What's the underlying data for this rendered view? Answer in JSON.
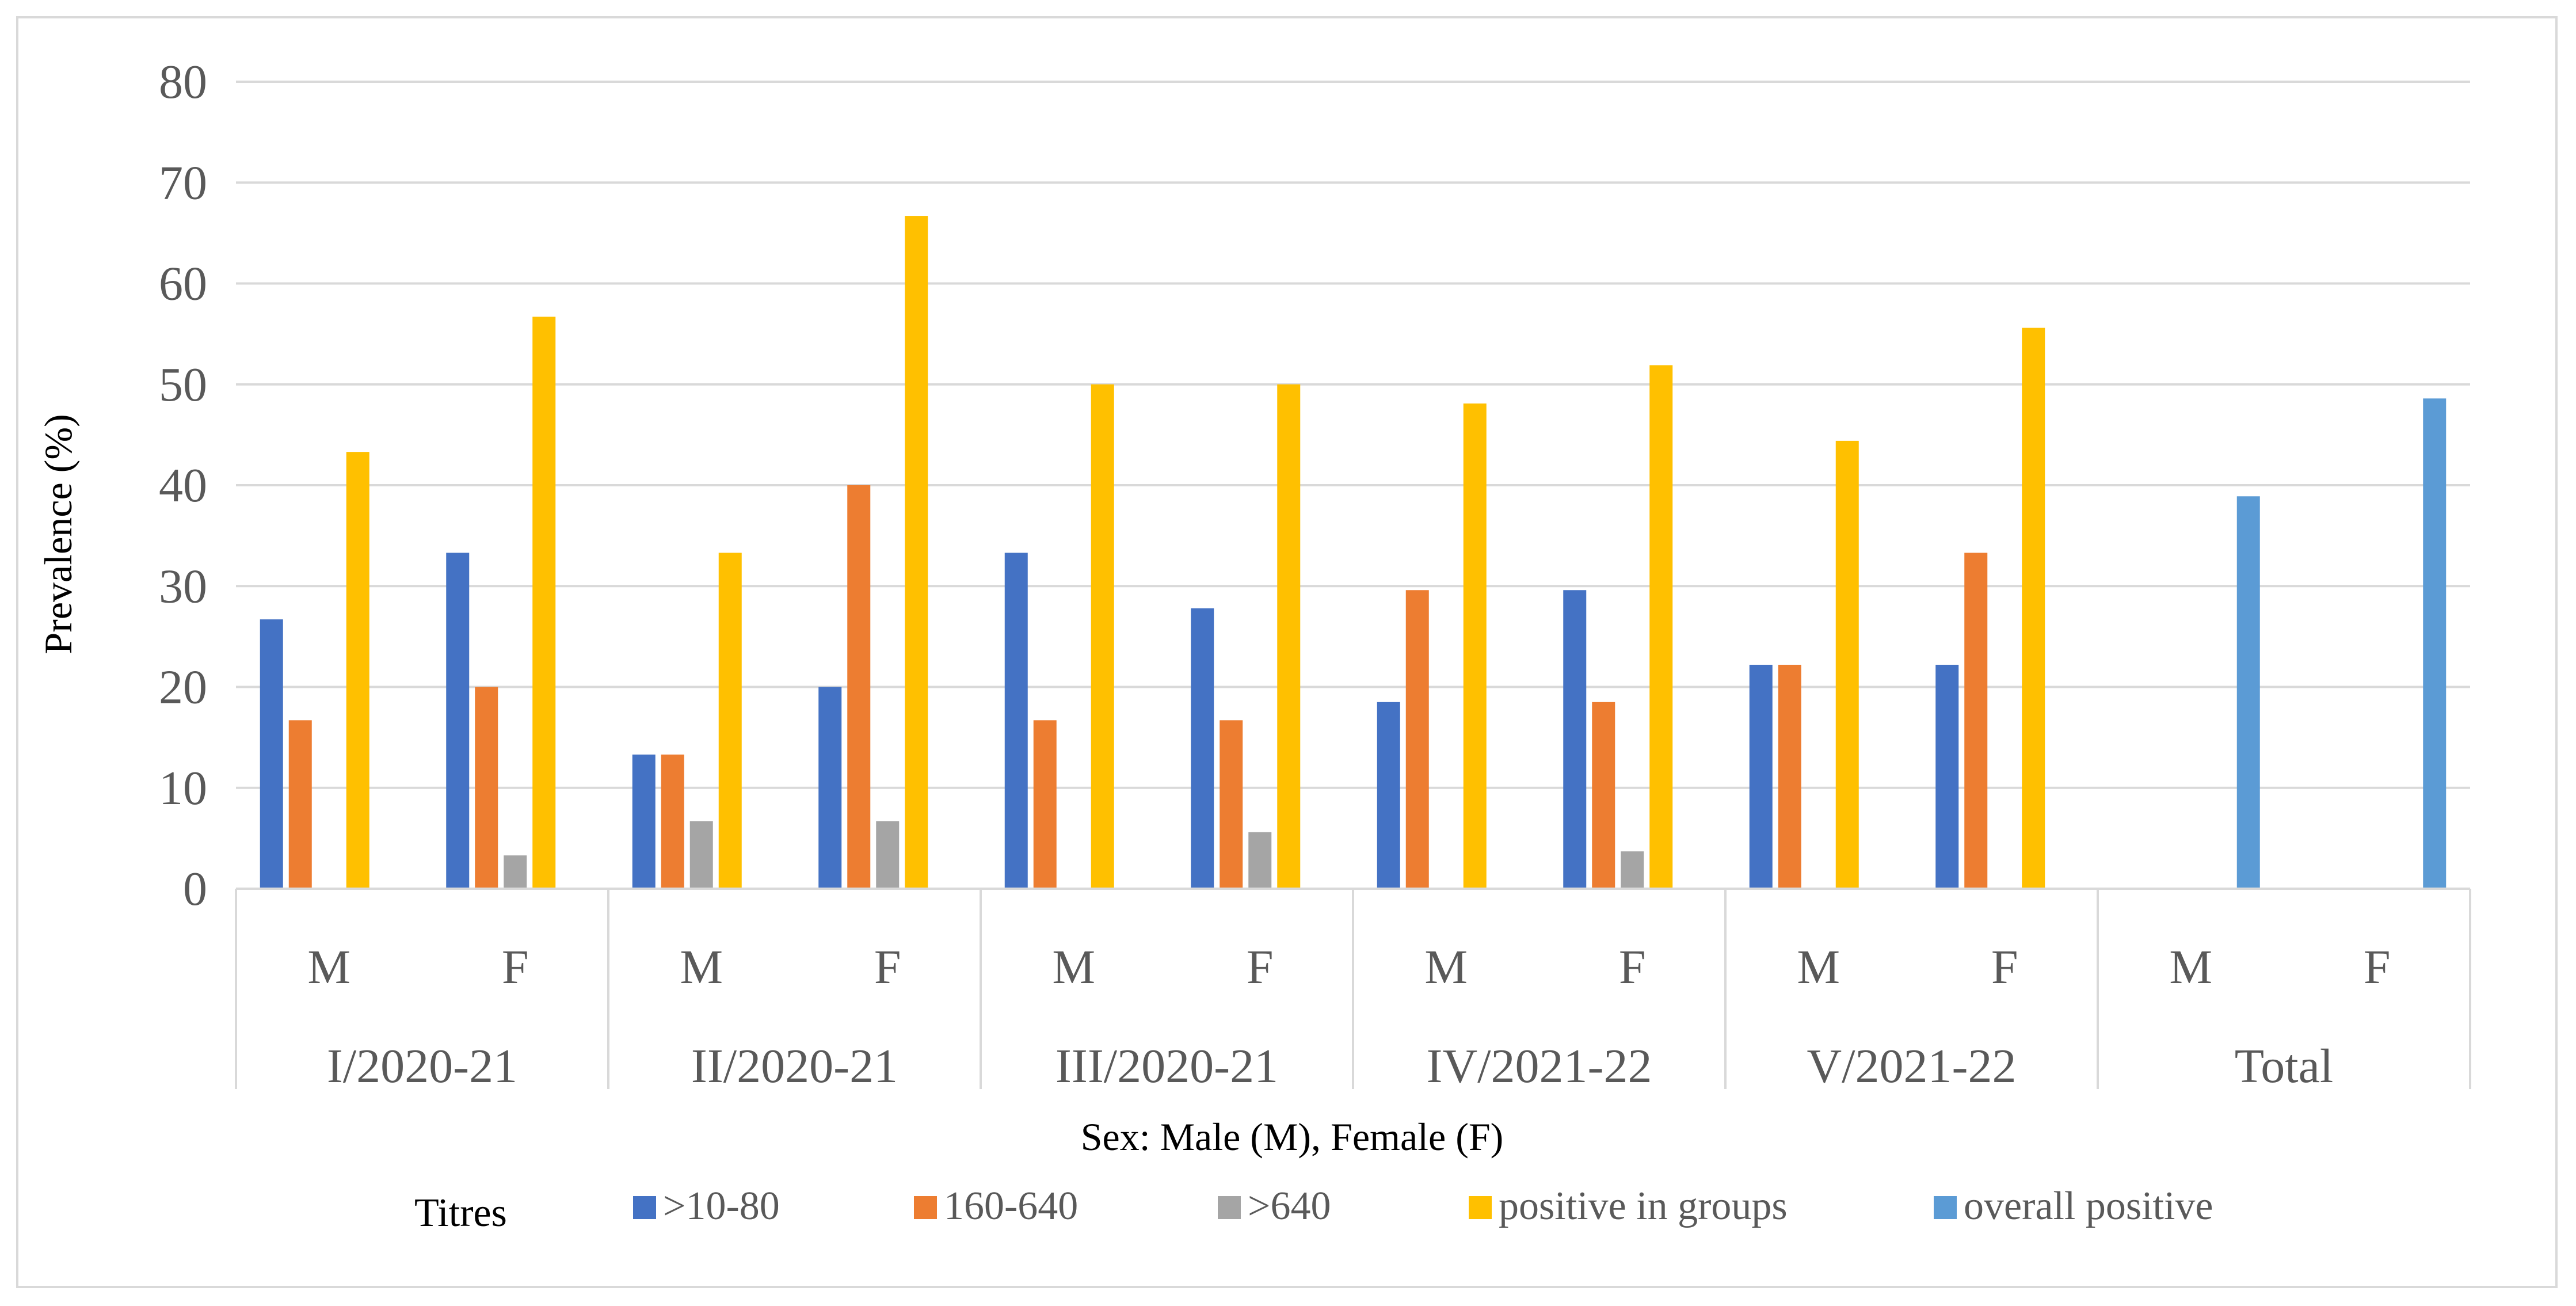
{
  "chart_data": {
    "type": "bar",
    "ylabel": "Prevalence (%)",
    "xlabel": "Sex: Male (M), Female (F)",
    "ylim": [
      0,
      80
    ],
    "yticks": [
      0,
      10,
      20,
      30,
      40,
      50,
      60,
      70,
      80
    ],
    "grid": true,
    "legend_title": "Titres",
    "legend_position": "bottom",
    "groups": [
      "I/2020-21",
      "II/2020-21",
      "III/2020-21",
      "IV/2021-22",
      "V/2021-22",
      "Total"
    ],
    "sexes": [
      "M",
      "F"
    ],
    "categories": [
      "I/2020-21 M",
      "I/2020-21 F",
      "II/2020-21 M",
      "II/2020-21 F",
      "III/2020-21 M",
      "III/2020-21 F",
      "IV/2021-22 M",
      "IV/2021-22 F",
      "V/2021-22 M",
      "V/2021-22 F",
      "Total M",
      "Total F"
    ],
    "series": [
      {
        "name": ">10-80",
        "color": "#4472c4",
        "values": [
          26.7,
          33.3,
          13.3,
          20.0,
          33.3,
          27.8,
          18.5,
          29.6,
          22.2,
          22.2,
          null,
          null
        ]
      },
      {
        "name": "160-640",
        "color": "#ed7d31",
        "values": [
          16.7,
          20.0,
          13.3,
          40.0,
          16.7,
          16.7,
          29.6,
          18.5,
          22.2,
          33.3,
          null,
          null
        ]
      },
      {
        "name": ">640",
        "color": "#a5a5a5",
        "values": [
          null,
          3.3,
          6.7,
          6.7,
          null,
          5.6,
          null,
          3.7,
          null,
          null,
          null,
          null
        ]
      },
      {
        "name": "positive in groups",
        "color": "#ffc000",
        "values": [
          43.3,
          56.7,
          33.3,
          66.7,
          50.0,
          50.0,
          48.1,
          51.9,
          44.4,
          55.6,
          null,
          null
        ]
      },
      {
        "name": "overall positive",
        "color": "#5b9bd5",
        "values": [
          null,
          null,
          null,
          null,
          null,
          null,
          null,
          null,
          null,
          null,
          38.9,
          48.6
        ]
      }
    ]
  }
}
